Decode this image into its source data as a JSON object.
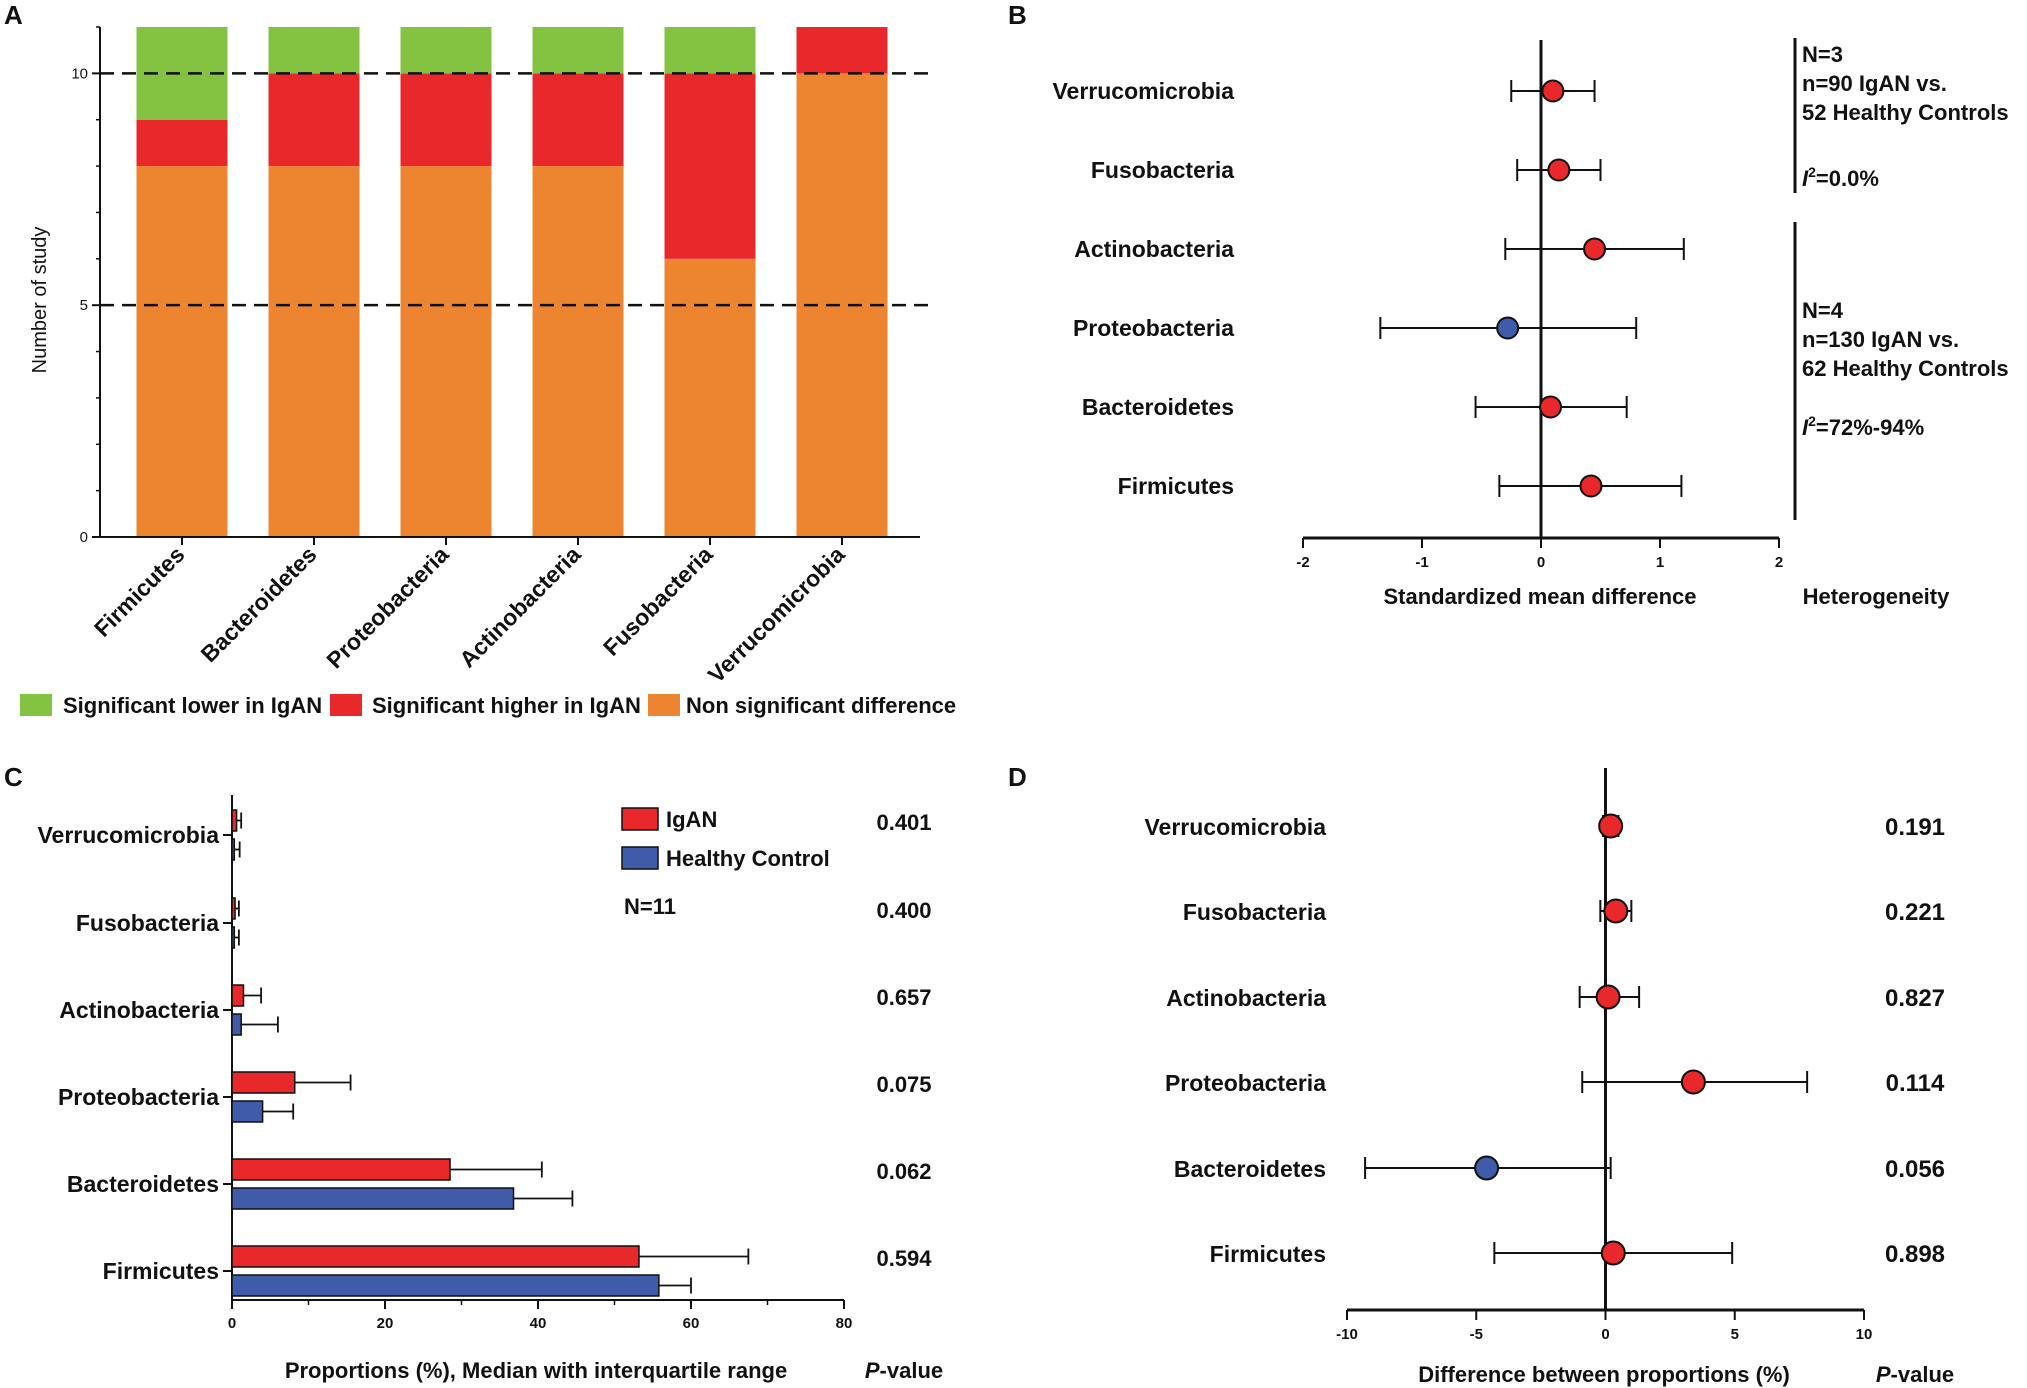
{
  "chart_data": [
    {
      "panel": "A",
      "type": "bar",
      "stacked": true,
      "ylabel": "Number of study",
      "ylim": [
        0,
        11
      ],
      "yticks": [
        "0",
        "5",
        "10"
      ],
      "reference_lines": [
        5,
        10
      ],
      "categories": [
        "Firmicutes",
        "Bacteroidetes",
        "Proteobacteria",
        "Actinobacteria",
        "Fusobacteria",
        "Verrucomicrobia"
      ],
      "series": [
        {
          "name": "Non significant difference",
          "color": "#ED8530",
          "values": [
            8,
            8,
            8,
            8,
            6,
            10
          ]
        },
        {
          "name": "Significant higher in IgAN",
          "color": "#E8282B",
          "values": [
            1,
            2,
            2,
            2,
            4,
            1
          ]
        },
        {
          "name": "Significant lower in IgAN",
          "color": "#84C341",
          "values": [
            2,
            1,
            1,
            1,
            1,
            0
          ]
        }
      ],
      "legend": [
        "Significant lower in IgAN",
        "Significant higher in IgAN",
        "Non significant difference"
      ]
    },
    {
      "panel": "B",
      "type": "scatter",
      "subtype": "forest",
      "xlabel": "Standardized mean difference",
      "xlim": [
        -2,
        2
      ],
      "xticks": [
        "-2",
        "-1",
        "0",
        "1",
        "2"
      ],
      "categories": [
        "Verrucomicrobia",
        "Fusobacteria",
        "Actinobacteria",
        "Proteobacteria",
        "Bacteroidetes",
        "Firmicutes"
      ],
      "estimates": [
        0.1,
        0.15,
        0.45,
        -0.28,
        0.08,
        0.42
      ],
      "ci_low": [
        -0.25,
        -0.2,
        -0.3,
        -1.35,
        -0.55,
        -0.35
      ],
      "ci_high": [
        0.45,
        0.5,
        1.2,
        0.8,
        0.72,
        1.18
      ],
      "point_colors": [
        "#E8282B",
        "#E8282B",
        "#E8282B",
        "#3F5BA9",
        "#E8282B",
        "#E8282B"
      ],
      "heterogeneity_title": "Heterogeneity",
      "heterogeneity_groups": [
        {
          "lines": [
            "N=3",
            "n=90 IgAN vs.",
            "52 Healthy Controls"
          ],
          "i2": "=0.0%"
        },
        {
          "lines": [
            "N=4",
            "n=130 IgAN vs.",
            "62 Healthy Controls"
          ],
          "i2": "=72%-94%"
        }
      ],
      "i2_symbol": "I",
      "i2_superscript": "2"
    },
    {
      "panel": "C",
      "type": "bar",
      "orientation": "horizontal",
      "xlabel": "Proportions (%), Median with interquartile range",
      "pvalue_title_p": "P",
      "pvalue_title_rest": "-value",
      "xlim": [
        0,
        80
      ],
      "xticks": [
        "0",
        "20",
        "40",
        "60",
        "80"
      ],
      "categories": [
        "Verrucomicrobia",
        "Fusobacteria",
        "Actinobacteria",
        "Proteobacteria",
        "Bacteroidetes",
        "Firmicutes"
      ],
      "series": [
        {
          "name": "IgAN",
          "color": "#E8282B",
          "values": [
            0.6,
            0.4,
            1.5,
            8.2,
            28.5,
            53.2
          ],
          "err_high": [
            1.2,
            0.9,
            3.8,
            15.5,
            40.5,
            67.5
          ]
        },
        {
          "name": "Healthy Control",
          "color": "#3F5BA9",
          "values": [
            0.3,
            0.3,
            1.2,
            4.0,
            36.8,
            55.8
          ],
          "err_high": [
            1.0,
            0.9,
            6.0,
            8.0,
            44.5,
            60.0
          ]
        }
      ],
      "pvalues": [
        "0.401",
        "0.400",
        "0.657",
        "0.075",
        "0.062",
        "0.594"
      ],
      "n_label": "N=11"
    },
    {
      "panel": "D",
      "type": "scatter",
      "subtype": "forest",
      "xlabel": "Difference between proportions (%)",
      "pvalue_title_p": "P",
      "pvalue_title_rest": "-value",
      "xlim": [
        -10,
        10
      ],
      "xticks": [
        "-10",
        "-5",
        "0",
        "5",
        "10"
      ],
      "categories": [
        "Verrucomicrobia",
        "Fusobacteria",
        "Actinobacteria",
        "Proteobacteria",
        "Bacteroidetes",
        "Firmicutes"
      ],
      "estimates": [
        0.2,
        0.4,
        0.1,
        3.4,
        -4.6,
        0.3
      ],
      "ci_low": [
        -0.1,
        -0.2,
        -1.0,
        -0.9,
        -9.3,
        -4.3
      ],
      "ci_high": [
        0.5,
        1.0,
        1.3,
        7.8,
        0.2,
        4.9
      ],
      "point_colors": [
        "#E8282B",
        "#E8282B",
        "#E8282B",
        "#E8282B",
        "#3F5BA9",
        "#E8282B"
      ],
      "pvalues": [
        "0.191",
        "0.221",
        "0.827",
        "0.114",
        "0.056",
        "0.898"
      ]
    }
  ]
}
